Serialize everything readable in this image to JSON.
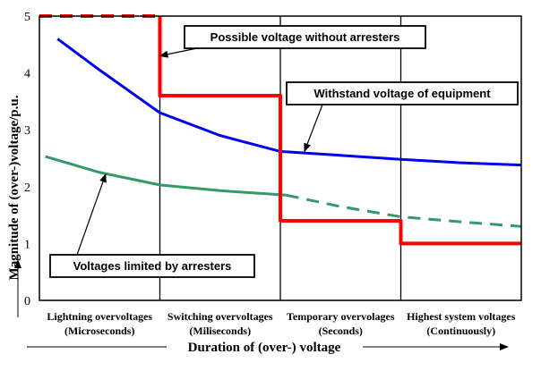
{
  "chart_data": {
    "type": "line",
    "xlabel": "Duration of (over-) voltage",
    "ylabel": "Magnitude of (over-)voltage/p.u.",
    "ylim": [
      0,
      5
    ],
    "yticks": [
      "0",
      "1",
      "2",
      "3",
      "4",
      "5"
    ],
    "grid": "vertical lines at category boundaries",
    "categories": [
      {
        "line1": "Lightning overvoltages",
        "line2": "(Microseconds)"
      },
      {
        "line1": "Switching overvoltages",
        "line2": "(Miliseconds)"
      },
      {
        "line1": "Temporary overvolages",
        "line2": "(Seconds)"
      },
      {
        "line1": "Highest system voltages",
        "line2": "(Continuously)"
      }
    ],
    "series": [
      {
        "key": "withstand",
        "color": "#0000ee",
        "style": "solid",
        "x": [
          0.15,
          0.5,
          1.0,
          1.5,
          2.0,
          2.5,
          3.0,
          3.5,
          4.0
        ],
        "y": [
          4.6,
          4.05,
          3.3,
          2.9,
          2.62,
          2.55,
          2.48,
          2.42,
          2.38
        ]
      },
      {
        "key": "limited",
        "color": "#339966",
        "segments": [
          {
            "style": "solid",
            "x": [
              0.05,
              0.5,
              1.0,
              1.5,
              2.05
            ],
            "y": [
              2.53,
              2.25,
              2.03,
              1.93,
              1.85
            ]
          },
          {
            "style": "dashed",
            "x": [
              2.05,
              2.5,
              3.0,
              3.5,
              4.0
            ],
            "y": [
              1.85,
              1.65,
              1.47,
              1.38,
              1.3
            ]
          }
        ]
      },
      {
        "key": "possible",
        "color": "#ff0000",
        "segments": [
          {
            "style": "dashed",
            "x": [
              0.0,
              1.0
            ],
            "y": [
              5.0,
              5.0
            ]
          },
          {
            "style": "solid",
            "x": [
              1.0,
              1.0,
              2.0,
              2.0,
              3.0,
              3.0,
              4.0
            ],
            "y": [
              5.0,
              3.6,
              3.6,
              1.4,
              1.4,
              1.0,
              1.0
            ]
          }
        ]
      }
    ],
    "annotations": [
      {
        "key": "possible",
        "text": "Possible voltage without arresters",
        "pointer": [
          1.0,
          4.3
        ]
      },
      {
        "key": "withstand",
        "text": "Withstand voltage of equipment",
        "pointer": [
          2.2,
          2.62
        ]
      },
      {
        "key": "limited",
        "text": "Voltages limited by arresters",
        "pointer": [
          0.55,
          2.22
        ]
      }
    ]
  }
}
